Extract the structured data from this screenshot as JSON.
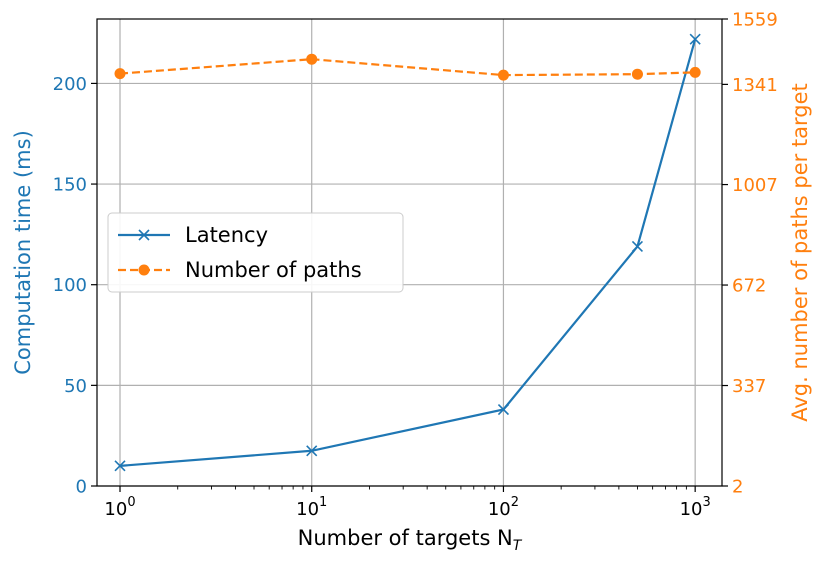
{
  "chart_data": {
    "type": "line",
    "title": "",
    "xlabel": "Number of targets N",
    "xlabel_subscript": "T",
    "x_scale": "log",
    "x_ticks": [
      1,
      10,
      100,
      1000
    ],
    "x_tick_bases": [
      "10",
      "10",
      "10",
      "10"
    ],
    "x_tick_exponents": [
      "0",
      "1",
      "2",
      "3"
    ],
    "grid": true,
    "legend_position": "center-left",
    "y_left": {
      "label": "Computation time (ms)",
      "color": "#1f77b4",
      "ylim": [
        0,
        232
      ],
      "ticks": [
        0,
        50,
        100,
        150,
        200
      ],
      "tick_labels": [
        "0",
        "50",
        "100",
        "150",
        "200"
      ]
    },
    "y_right": {
      "label": "Avg. number of paths per target",
      "color": "#ff7f0e",
      "ylim": [
        2,
        1559
      ],
      "ticks": [
        2,
        337,
        672,
        1007,
        1341,
        1559
      ],
      "tick_labels": [
        "2",
        "337",
        "672",
        "1007",
        "1341",
        "1559"
      ]
    },
    "series": [
      {
        "name": "Latency",
        "axis": "left",
        "color": "#1f77b4",
        "line_style": "solid",
        "marker": "x",
        "x": [
          1,
          10,
          100,
          500,
          1000
        ],
        "y": [
          10,
          17.5,
          38,
          119,
          222
        ]
      },
      {
        "name": "Number of paths",
        "axis": "right",
        "color": "#ff7f0e",
        "line_style": "dashed",
        "marker": "o",
        "x": [
          1,
          10,
          100,
          500,
          1000
        ],
        "y": [
          1377,
          1425,
          1372,
          1375,
          1381
        ]
      }
    ]
  }
}
